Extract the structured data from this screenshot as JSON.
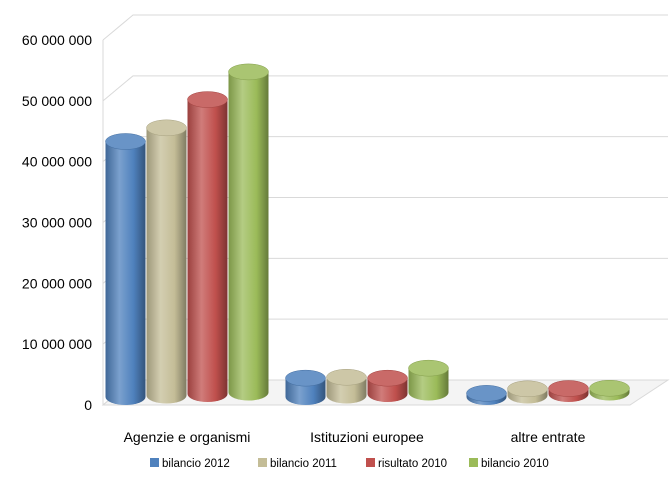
{
  "chart_data": {
    "type": "bar",
    "title": "",
    "xlabel": "",
    "ylabel": "",
    "ylim": [
      0,
      60000000
    ],
    "yticks": [
      0,
      10000000,
      20000000,
      30000000,
      40000000,
      50000000,
      60000000
    ],
    "ytick_labels": [
      "0",
      "10 000 000",
      "20 000 000",
      "30 000 000",
      "40 000 000",
      "50 000 000",
      "60 000 000"
    ],
    "categories": [
      "Agenzie e organismi",
      "Istituzioni europee",
      "altre entrate"
    ],
    "series": [
      {
        "name": "bilancio 2012",
        "color": "#4F81BD",
        "values": [
          42000000,
          3100000,
          600000
        ]
      },
      {
        "name": "bilancio 2011",
        "color": "#C4BD97",
        "values": [
          44000000,
          3000000,
          1100000
        ]
      },
      {
        "name": "risultato 2010",
        "color": "#C0504D",
        "values": [
          48400000,
          2600000,
          900000
        ]
      },
      {
        "name": "bilancio 2010",
        "color": "#9BBB59",
        "values": [
          52700000,
          4000000,
          700000
        ]
      }
    ],
    "grid": true,
    "legend": "bottom",
    "style": "3d-cylinder"
  }
}
